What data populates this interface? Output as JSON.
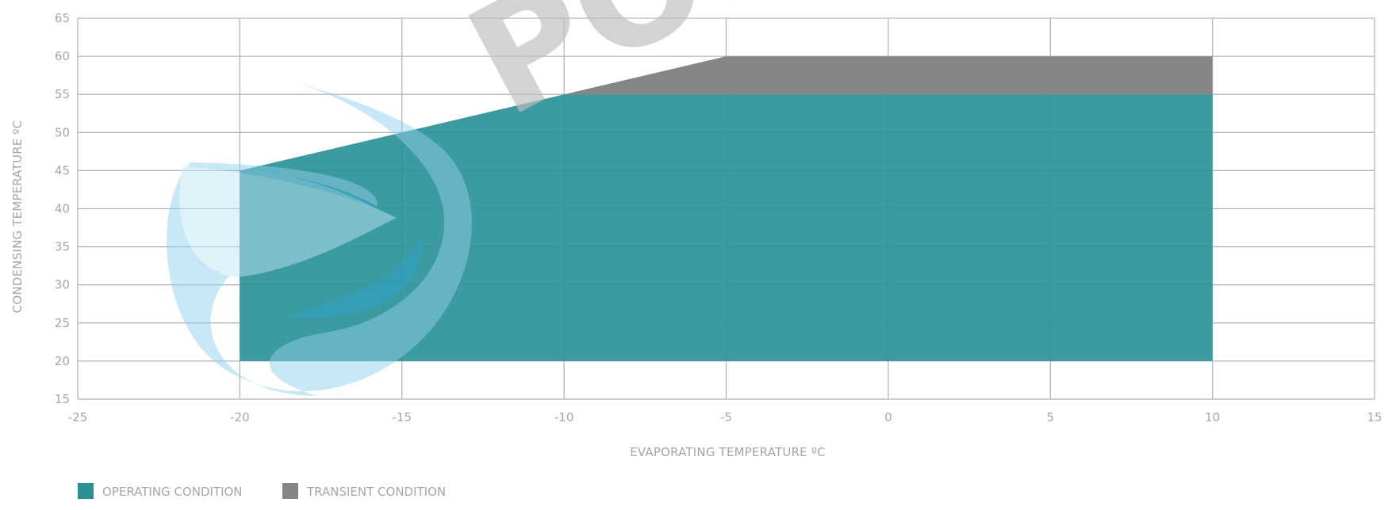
{
  "chart_data": {
    "type": "area",
    "xlabel": "EVAPORATING TEMPERATURE ºC",
    "ylabel": "CONDENSING TEMPERATURE ºC",
    "xlim": [
      -25,
      15
    ],
    "ylim": [
      15,
      65
    ],
    "x_ticks": [
      "-25",
      "-20",
      "-15",
      "-10",
      "-5",
      "0",
      "5",
      "10",
      "15"
    ],
    "y_ticks": [
      "15",
      "20",
      "25",
      "30",
      "35",
      "40",
      "45",
      "50",
      "55",
      "60",
      "65"
    ],
    "grid": true,
    "legend_position": "bottom-left",
    "series": [
      {
        "name": "OPERATING CONDITION",
        "color": "#2b9199",
        "polygon": [
          [
            -20,
            20
          ],
          [
            -20,
            45
          ],
          [
            -10,
            55
          ],
          [
            10,
            55
          ],
          [
            10,
            20
          ]
        ]
      },
      {
        "name": "TRANSIENT CONDITION",
        "color": "#858585",
        "polygon": [
          [
            -10,
            55
          ],
          [
            -5,
            60
          ],
          [
            10,
            60
          ],
          [
            10,
            55
          ]
        ]
      }
    ]
  },
  "watermark": {
    "logo_text": "POLARXIN",
    "swirl_colors": [
      "#8fd0ea",
      "#2fa7c9",
      "#bfe6f4"
    ]
  }
}
